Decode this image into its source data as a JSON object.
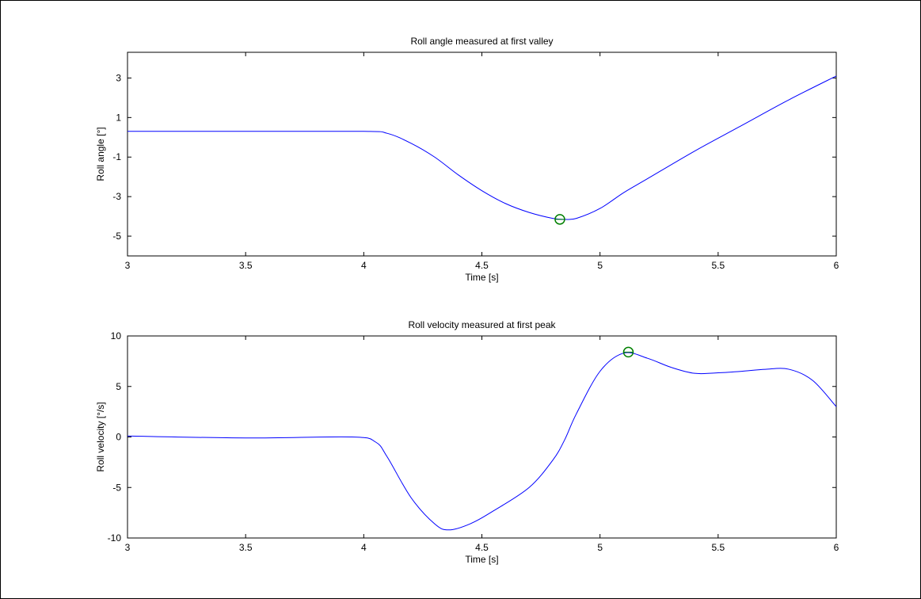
{
  "chart_data": [
    {
      "type": "line",
      "title": "Roll angle measured at first valley",
      "xlabel": "Time [s]",
      "ylabel": "Roll angle [°]",
      "xlim": [
        3,
        6
      ],
      "ylim": [
        -6,
        4.3
      ],
      "xticks": [
        3,
        3.5,
        4,
        4.5,
        5,
        5.5,
        6
      ],
      "xtick_labels": [
        "3",
        "3.5",
        "4",
        "4.5",
        "5",
        "5.5",
        "6"
      ],
      "yticks": [
        -5,
        -3,
        -1,
        1,
        3
      ],
      "ytick_labels": [
        "-5",
        "-3",
        "-1",
        "1",
        "3"
      ],
      "series": [
        {
          "color": "#0000ff",
          "x": [
            3.0,
            3.5,
            4.0,
            4.1,
            4.2,
            4.3,
            4.4,
            4.5,
            4.6,
            4.7,
            4.8,
            4.85,
            4.9,
            5.0,
            5.1,
            5.2,
            5.4,
            5.6,
            5.8,
            6.0
          ],
          "y": [
            0.3,
            0.3,
            0.3,
            0.2,
            -0.3,
            -1.0,
            -1.9,
            -2.7,
            -3.35,
            -3.8,
            -4.1,
            -4.15,
            -4.1,
            -3.6,
            -2.8,
            -2.1,
            -0.7,
            0.6,
            1.9,
            3.1
          ]
        }
      ],
      "marker": {
        "x": 4.83,
        "y": -4.15,
        "color": "#008000"
      }
    },
    {
      "type": "line",
      "title": "Roll velocity measured at first peak",
      "xlabel": "Time [s]",
      "ylabel": "Roll velocity [°/s]",
      "xlim": [
        3,
        6
      ],
      "ylim": [
        -10,
        10
      ],
      "xticks": [
        3,
        3.5,
        4,
        4.5,
        5,
        5.5,
        6
      ],
      "xtick_labels": [
        "3",
        "3.5",
        "4",
        "4.5",
        "5",
        "5.5",
        "6"
      ],
      "yticks": [
        -10,
        -5,
        0,
        5,
        10
      ],
      "ytick_labels": [
        "-10",
        "-5",
        "0",
        "5",
        "10"
      ],
      "series": [
        {
          "color": "#0000ff",
          "x": [
            3.0,
            3.5,
            3.95,
            4.05,
            4.1,
            4.2,
            4.3,
            4.36,
            4.45,
            4.55,
            4.7,
            4.8,
            4.85,
            4.9,
            5.0,
            5.1,
            5.2,
            5.3,
            5.4,
            5.5,
            5.6,
            5.7,
            5.8,
            5.9,
            6.0
          ],
          "y": [
            0.1,
            -0.1,
            0.0,
            -0.5,
            -2.0,
            -6.0,
            -8.6,
            -9.2,
            -8.6,
            -7.3,
            -5.0,
            -2.3,
            -0.3,
            2.3,
            6.5,
            8.3,
            7.8,
            6.9,
            6.3,
            6.35,
            6.5,
            6.7,
            6.7,
            5.6,
            3.0
          ]
        }
      ],
      "marker": {
        "x": 5.12,
        "y": 8.4,
        "color": "#008000"
      }
    }
  ]
}
